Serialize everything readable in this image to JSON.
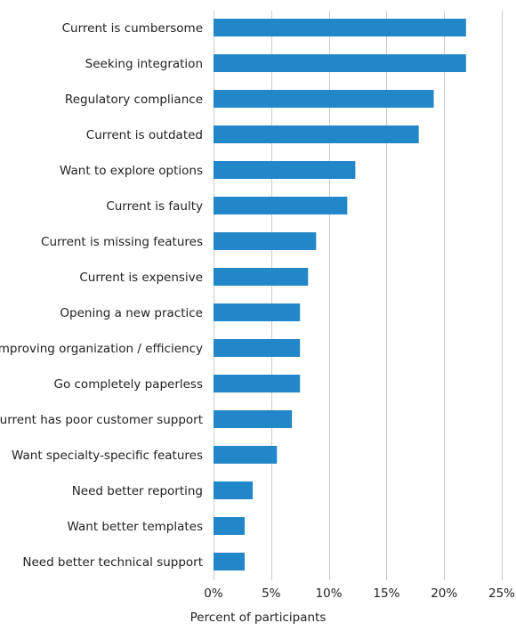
{
  "chart_data": {
    "type": "bar",
    "orientation": "horizontal",
    "title": "",
    "xlabel": "Percent of participants",
    "ylabel": "",
    "categories": [
      "Current is cumbersome",
      "Seeking integration",
      "Regulatory compliance",
      "Current is outdated",
      "Want to explore options",
      "Current is faulty",
      "Current is missing features",
      "Current is expensive",
      "Opening a new practice",
      "Improving organization / efficiency",
      "Go completely paperless",
      "Current has poor customer support",
      "Want specialty-specific features",
      "Need better reporting",
      "Want better templates",
      "Need better technical support"
    ],
    "values": [
      21.9,
      21.9,
      19.1,
      17.8,
      12.3,
      11.6,
      8.9,
      8.2,
      7.5,
      7.5,
      7.5,
      6.8,
      5.5,
      3.4,
      2.7,
      2.7
    ],
    "xlim": [
      0,
      25
    ],
    "xticks": [
      0,
      5,
      10,
      15,
      20,
      25
    ],
    "xtick_labels": [
      "0%",
      "5%",
      "10%",
      "15%",
      "20%",
      "25%"
    ],
    "grid": "vertical",
    "legend": "none",
    "bar_color": "#2287c9"
  }
}
